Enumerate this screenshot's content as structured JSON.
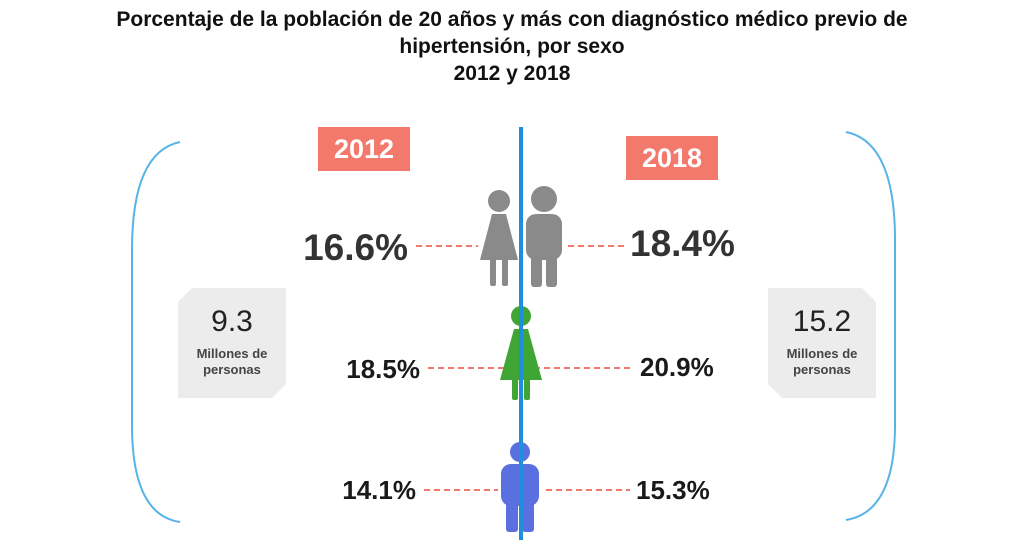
{
  "title": {
    "line1": "Porcentaje de la población de 20 años y más con diagnóstico médico previo de",
    "line2": "hipertensión, por sexo",
    "line3": "2012 y 2018"
  },
  "colors": {
    "badge": "#f2796b",
    "axis": "#1f8fdc",
    "bracket": "#58b3e8",
    "dash": "#f2796b",
    "total_icon": "#8a8a8a",
    "female": "#3fa535",
    "male": "#5a6fe0",
    "box": "#ececec"
  },
  "icons": {
    "total": "couple-icon",
    "female": "woman-icon",
    "male": "man-icon"
  },
  "chart_data": {
    "type": "table",
    "title": "Porcentaje de la población de 20 años y más con diagnóstico médico previo de hipertensión, por sexo 2012 y 2018",
    "years": [
      "2012",
      "2018"
    ],
    "rows": [
      {
        "group": "total",
        "icon": "couple-icon",
        "values": [
          16.6,
          18.4
        ],
        "labels": [
          "16.6%",
          "18.4%"
        ]
      },
      {
        "group": "female",
        "icon": "woman-icon",
        "values": [
          18.5,
          20.9
        ],
        "labels": [
          "18.5%",
          "20.9%"
        ]
      },
      {
        "group": "male",
        "icon": "man-icon",
        "values": [
          14.1,
          15.3
        ],
        "labels": [
          "14.1%",
          "15.3%"
        ]
      }
    ],
    "totals": [
      {
        "year": "2012",
        "value": "9.3",
        "unit": "Millones de personas"
      },
      {
        "year": "2018",
        "value": "15.2",
        "unit": "Millones de personas"
      }
    ]
  }
}
